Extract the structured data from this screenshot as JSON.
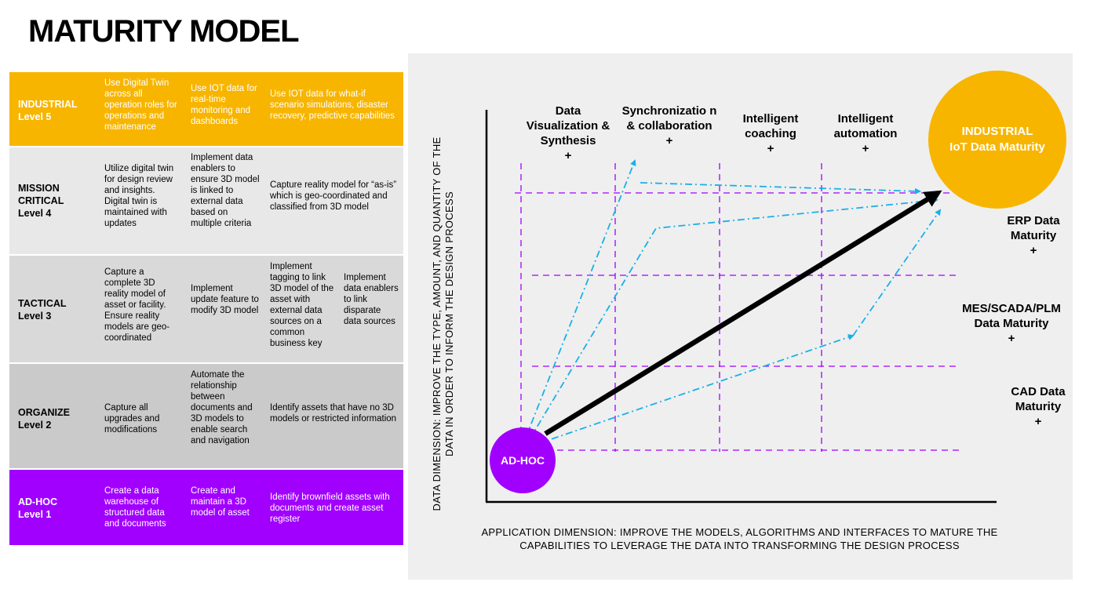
{
  "title": "MATURITY MODEL",
  "table": {
    "level5": {
      "name": "INDUSTRIAL",
      "level": "Level 5",
      "col1": "Use Digital Twin across all operation roles for operations and maintenance",
      "col2": "Use IOT data for real-time monitoring and dashboards",
      "col3": "Use IOT data for what-if scenario simulations, disaster recovery, predictive capabilities"
    },
    "level4": {
      "name": "MISSION CRITICAL",
      "level": "Level 4",
      "col1": "Utilize digital twin for design review and insights. Digital twin is maintained with updates",
      "col2": "Implement data enablers to ensure 3D model is linked to external data based on multiple criteria",
      "col3": "Capture reality model for “as-is” which is geo-coordinated and classified from 3D model"
    },
    "level3": {
      "name": "TACTICAL",
      "level": "Level 3",
      "col1": "Capture a complete 3D reality model of asset or facility. Ensure reality models are geo-coordinated",
      "col2": "Implement update feature to modify 3D model",
      "col3a": "Implement tagging to link 3D model of the asset with external data sources on a common business key",
      "col3b": "Implement data enablers to link disparate data sources"
    },
    "level2": {
      "name": "ORGANIZE",
      "level": "Level 2",
      "col1": "Capture all upgrades and modifications",
      "col2": "Automate the relationship between documents and 3D models to enable search and navigation",
      "col3": "Identify assets that have no 3D models or restricted information"
    },
    "level1": {
      "name": "AD-HOC",
      "level": "Level 1",
      "col1": "Create a data warehouse of structured data and documents",
      "col2": "Create and maintain a 3D model of asset",
      "col3": "Identify brownfield assets with documents and create asset register"
    }
  },
  "diagram": {
    "columns": [
      {
        "label": "Data Visualization & Synthesis",
        "plus": "+"
      },
      {
        "label": "Synchronizatio n & collaboration",
        "plus": "+"
      },
      {
        "label": "Intelligent coaching",
        "plus": "+"
      },
      {
        "label": "Intelligent automation",
        "plus": "+"
      }
    ],
    "rows": [
      {
        "label": "ERP Data Maturity",
        "plus": "+"
      },
      {
        "label": "MES/SCADA/PLM Data Maturity",
        "plus": "+"
      },
      {
        "label": "CAD Data Maturity",
        "plus": "+"
      }
    ],
    "top_circle": {
      "line1": "INDUSTRIAL",
      "line2": "IoT Data Maturity"
    },
    "bottom_circle": "AD-HOC",
    "y_axis_label": "DATA DIMENSION: IMPROVE THE TYPE, AMOUNT, AND QUANTITY OF THE DATA IN ORDER TO INFORM THE DESIGN PROCESS",
    "x_axis_label": "APPLICATION DIMENSION: IMPROVE THE MODELS, ALGORITHMS AND INTERFACES TO MATURE THE CAPABILITIES TO LEVERAGE THE DATA INTO TRANSFORMING THE DESIGN PROCESS",
    "colors": {
      "grid": "#a100ff",
      "dash_arrows": "#1ab0e8",
      "main_arrow": "#000000",
      "industrial": "#f7b500",
      "adhoc": "#a100ff"
    }
  }
}
